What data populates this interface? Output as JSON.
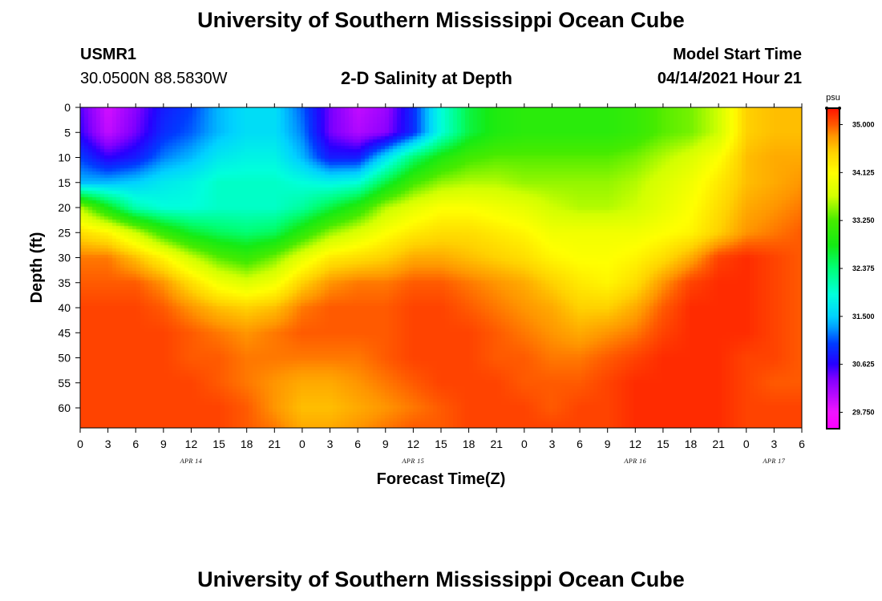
{
  "header": {
    "title_top": "University of Southern Mississippi Ocean Cube",
    "title_bottom": "University of Southern Mississippi Ocean Cube",
    "station_id": "USMR1",
    "station_coords": "30.0500N  88.5830W",
    "plot_title": "2-D Salinity at Depth",
    "model_start_label": "Model Start Time",
    "model_start_value": "04/14/2021 Hour 21"
  },
  "chart_data": {
    "type": "heatmap",
    "title": "2-D Salinity at Depth",
    "xlabel": "Forecast Time(Z)",
    "ylabel": "Depth (ft)",
    "x_hours_range": [
      0,
      78
    ],
    "ylim": [
      0,
      64
    ],
    "x_tick_labels": [
      "0",
      "3",
      "6",
      "9",
      "12",
      "15",
      "18",
      "21",
      "0",
      "3",
      "6",
      "9",
      "12",
      "15",
      "18",
      "21",
      "0",
      "3",
      "6",
      "9",
      "12",
      "15",
      "18",
      "21",
      "0",
      "3",
      "6"
    ],
    "day_labels": [
      {
        "label": "APR 14",
        "hour": 12
      },
      {
        "label": "APR 15",
        "hour": 36
      },
      {
        "label": "APR 16",
        "hour": 60
      },
      {
        "label": "APR 17",
        "hour": 75
      }
    ],
    "y_ticks": [
      0,
      5,
      10,
      15,
      20,
      25,
      30,
      35,
      40,
      45,
      50,
      55,
      60
    ],
    "colorbar": {
      "unit": "psu",
      "min": 29.45,
      "max": 35.3,
      "tick_labels": [
        "35.000",
        "34.125",
        "33.250",
        "32.375",
        "31.500",
        "30.625",
        "29.750"
      ],
      "tick_values": [
        35.0,
        34.125,
        33.25,
        32.375,
        31.5,
        30.625,
        29.75
      ]
    },
    "grid_hours": [
      0,
      3,
      6,
      9,
      12,
      15,
      18,
      21,
      24,
      27,
      30,
      33,
      36,
      39,
      42,
      45,
      48,
      51,
      54,
      57,
      60,
      63,
      66,
      69,
      72,
      75,
      78
    ],
    "grid_depths": [
      0,
      5,
      10,
      15,
      20,
      25,
      30,
      35,
      40,
      45,
      50,
      55,
      60,
      64
    ],
    "salinity": [
      [
        30.5,
        29.9,
        30.3,
        30.8,
        31.0,
        31.4,
        31.6,
        31.6,
        31.1,
        30.4,
        30.0,
        30.2,
        30.9,
        31.9,
        32.6,
        32.9,
        33.0,
        33.0,
        33.0,
        33.0,
        33.1,
        33.3,
        33.4,
        33.7,
        34.5,
        34.6,
        34.6
      ],
      [
        30.6,
        30.0,
        30.4,
        30.9,
        31.1,
        31.4,
        31.6,
        31.6,
        31.2,
        30.4,
        30.1,
        30.3,
        30.9,
        31.9,
        32.6,
        32.9,
        33.0,
        33.0,
        33.0,
        33.0,
        33.1,
        33.3,
        33.4,
        33.7,
        34.5,
        34.6,
        34.6
      ],
      [
        31.0,
        30.6,
        30.8,
        31.2,
        31.4,
        31.7,
        31.8,
        31.8,
        31.4,
        30.8,
        30.8,
        31.6,
        32.4,
        32.9,
        33.2,
        33.3,
        33.3,
        33.3,
        33.3,
        33.3,
        33.4,
        33.6,
        33.8,
        34.1,
        34.6,
        34.7,
        34.7
      ],
      [
        31.4,
        31.4,
        31.5,
        31.7,
        31.8,
        32.0,
        32.0,
        32.0,
        31.9,
        31.8,
        31.9,
        32.6,
        33.2,
        33.5,
        33.6,
        33.6,
        33.5,
        33.5,
        33.5,
        33.5,
        33.6,
        33.8,
        34.0,
        34.3,
        34.6,
        34.7,
        34.8
      ],
      [
        33.6,
        32.8,
        32.1,
        31.9,
        31.9,
        32.0,
        32.0,
        32.0,
        32.2,
        32.6,
        33.0,
        33.6,
        33.9,
        34.1,
        34.1,
        34.0,
        33.9,
        33.7,
        33.6,
        33.6,
        33.7,
        33.9,
        34.1,
        34.4,
        34.7,
        34.8,
        34.9
      ],
      [
        34.4,
        34.2,
        33.7,
        33.1,
        32.7,
        32.5,
        32.4,
        32.5,
        33.0,
        33.5,
        33.8,
        34.1,
        34.3,
        34.4,
        34.4,
        34.3,
        34.2,
        34.0,
        34.0,
        34.0,
        34.0,
        34.1,
        34.2,
        34.5,
        34.8,
        34.9,
        35.0
      ],
      [
        34.9,
        34.9,
        34.6,
        34.2,
        33.7,
        33.3,
        33.1,
        33.4,
        33.9,
        34.3,
        34.4,
        34.5,
        34.7,
        34.7,
        34.6,
        34.5,
        34.4,
        34.2,
        34.1,
        34.1,
        34.2,
        34.4,
        34.7,
        35.1,
        35.2,
        35.1,
        35.0
      ],
      [
        35.0,
        35.0,
        35.0,
        34.8,
        34.4,
        34.0,
        33.8,
        34.0,
        34.5,
        34.8,
        34.9,
        34.9,
        35.0,
        35.0,
        34.9,
        34.8,
        34.7,
        34.5,
        34.3,
        34.2,
        34.4,
        34.8,
        35.1,
        35.2,
        35.2,
        35.1,
        35.0
      ],
      [
        35.1,
        35.1,
        35.1,
        35.0,
        34.8,
        34.6,
        34.5,
        34.6,
        34.9,
        35.0,
        35.0,
        35.0,
        35.1,
        35.1,
        35.0,
        34.9,
        34.8,
        34.7,
        34.5,
        34.5,
        34.7,
        35.0,
        35.2,
        35.2,
        35.2,
        35.1,
        35.0
      ],
      [
        35.1,
        35.1,
        35.1,
        35.1,
        35.0,
        34.9,
        34.8,
        34.9,
        35.0,
        35.0,
        35.0,
        35.0,
        35.1,
        35.1,
        35.1,
        35.0,
        34.9,
        34.8,
        34.7,
        34.8,
        34.9,
        35.1,
        35.2,
        35.2,
        35.2,
        35.1,
        35.0
      ],
      [
        35.1,
        35.1,
        35.1,
        35.1,
        35.0,
        35.0,
        34.9,
        34.9,
        34.9,
        34.9,
        34.9,
        35.0,
        35.1,
        35.1,
        35.1,
        35.0,
        35.0,
        34.9,
        34.9,
        35.0,
        35.1,
        35.2,
        35.2,
        35.2,
        35.1,
        35.1,
        35.0
      ],
      [
        35.1,
        35.1,
        35.1,
        35.1,
        35.1,
        35.0,
        34.9,
        34.8,
        34.7,
        34.7,
        34.8,
        34.9,
        35.0,
        35.1,
        35.1,
        35.1,
        35.0,
        35.0,
        35.0,
        35.1,
        35.2,
        35.2,
        35.2,
        35.2,
        35.1,
        35.0,
        35.0
      ],
      [
        35.1,
        35.1,
        35.1,
        35.1,
        35.1,
        35.1,
        35.0,
        34.8,
        34.6,
        34.6,
        34.7,
        34.8,
        34.9,
        35.0,
        35.1,
        35.1,
        35.1,
        35.0,
        35.1,
        35.1,
        35.2,
        35.2,
        35.2,
        35.2,
        35.1,
        35.1,
        35.1
      ],
      [
        35.1,
        35.1,
        35.1,
        35.1,
        35.1,
        35.1,
        35.0,
        34.9,
        34.7,
        34.7,
        34.8,
        34.9,
        35.0,
        35.0,
        35.1,
        35.1,
        35.1,
        35.1,
        35.1,
        35.1,
        35.2,
        35.2,
        35.2,
        35.2,
        35.1,
        35.1,
        35.1
      ]
    ]
  }
}
